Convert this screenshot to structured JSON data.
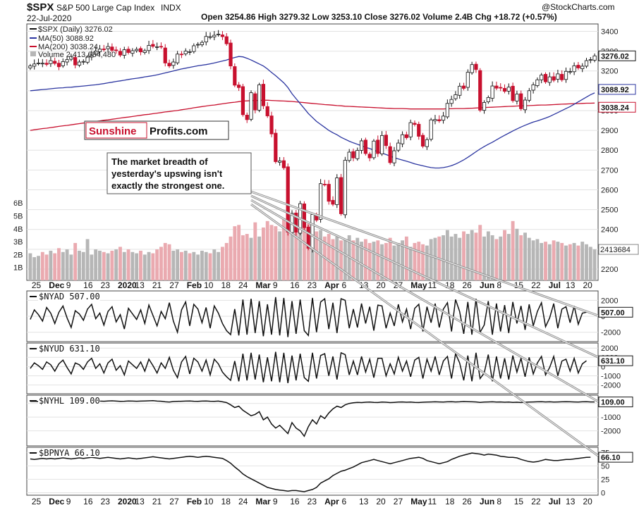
{
  "header": {
    "symbol": "$SPX",
    "name": "S&P 500 Large Cap Index",
    "exchange": "INDX",
    "date": "22-Jul-2020",
    "ohlc": "Open 3254.86  High 3279.32  Low 3253.10  Close 3276.02  Volume 2.4B  Chg +18.72 (+0.57%)",
    "watermark": "@StockCharts.com"
  },
  "legend": {
    "spx": "$SPX (Daily) 3276.02",
    "ma50": "MA(50) 3088.92",
    "ma200": "MA(200) 3038.24",
    "volume": "Volume 2,413,684,480"
  },
  "logo": {
    "part1": "Sunshine",
    "part2": "Profits.com"
  },
  "annotation": {
    "lines": [
      "The market breadth of",
      "yesterday's upswing isn't",
      "exactly the strongest one."
    ]
  },
  "colors": {
    "up": "#111111",
    "down": "#c8102e",
    "ma50": "#2b35a0",
    "ma200": "#c8102e",
    "vol_up": "#b6b6b6",
    "vol_down": "#eaaab0",
    "arrow": "#999999"
  },
  "chart_data": [
    {
      "type": "candlestick",
      "title": "$SPX S&P 500 Large Cap Index",
      "ylim": [
        2150,
        3430
      ],
      "y_ticks": [
        2200,
        2300,
        2400,
        2500,
        2600,
        2700,
        2800,
        2900,
        3000,
        3100,
        3200,
        3300,
        3400
      ],
      "volume_ticks": [
        "1B",
        "2B",
        "3B",
        "4B",
        "5B",
        "6B"
      ],
      "tags": {
        "close": "3276.02",
        "ma50": "3088.92",
        "ma200": "3038.24",
        "volume": "2413684"
      },
      "closes": [
        3225,
        3235,
        3240,
        3239,
        3233,
        3252,
        3238,
        3221,
        3247,
        3257,
        3273,
        3230,
        3245,
        3248,
        3270,
        3280,
        3300,
        3310,
        3307,
        3323,
        3304,
        3304,
        3280,
        3307,
        3293,
        3302,
        3309,
        3296,
        3302,
        3329,
        3324,
        3322,
        3321,
        3240,
        3225,
        3245,
        3285,
        3282,
        3300,
        3297,
        3327,
        3334,
        3344,
        3374,
        3373,
        3380,
        3386,
        3373,
        3337,
        3225,
        3128,
        3116,
        2979,
        2954,
        3090,
        3003,
        3130,
        3024,
        2973,
        2882,
        2742,
        2746,
        2711,
        2386,
        2481,
        2386,
        2530,
        2409,
        2305,
        2475,
        2447,
        2631,
        2627,
        2542,
        2527,
        2660,
        2479,
        2749,
        2790,
        2761,
        2799,
        2847,
        2783,
        2761,
        2846,
        2783,
        2874,
        2823,
        2737,
        2797,
        2836,
        2878,
        2863,
        2939,
        2930,
        2870,
        2820,
        2853,
        2953,
        2955,
        2948,
        2972,
        3036,
        3056,
        3080,
        3123,
        3112,
        3193,
        3232,
        3207,
        3002,
        3041,
        3066,
        3124,
        3113,
        3115,
        3097,
        3118,
        3050,
        3083,
        3009,
        3053,
        3100,
        3130,
        3155,
        3179,
        3145,
        3170,
        3153,
        3185,
        3155,
        3198,
        3197,
        3226,
        3215,
        3224,
        3252,
        3257,
        3276
      ],
      "ma50": [
        3100,
        3102,
        3104,
        3106,
        3108,
        3110,
        3112,
        3114,
        3115,
        3117,
        3118,
        3120,
        3122,
        3124,
        3126,
        3128,
        3130,
        3133,
        3136,
        3140,
        3143,
        3147,
        3150,
        3153,
        3157,
        3160,
        3163,
        3166,
        3170,
        3173,
        3176,
        3180,
        3185,
        3190,
        3195,
        3200,
        3205,
        3210,
        3214,
        3218,
        3222,
        3226,
        3229,
        3232,
        3236,
        3240,
        3245,
        3250,
        3255,
        3262,
        3268,
        3273,
        3271,
        3264,
        3255,
        3245,
        3235,
        3225,
        3210,
        3192,
        3176,
        3158,
        3140,
        3116,
        3085,
        3060,
        3035,
        3010,
        2985,
        2965,
        2945,
        2930,
        2915,
        2900,
        2888,
        2878,
        2865,
        2855,
        2845,
        2837,
        2830,
        2822,
        2814,
        2808,
        2800,
        2793,
        2785,
        2778,
        2770,
        2762,
        2756,
        2750,
        2744,
        2738,
        2731,
        2726,
        2721,
        2716,
        2712,
        2710,
        2710,
        2712,
        2716,
        2722,
        2730,
        2740,
        2751,
        2764,
        2778,
        2792,
        2806,
        2818,
        2830,
        2840,
        2852,
        2864,
        2875,
        2886,
        2897,
        2907,
        2917,
        2926,
        2934,
        2942,
        2948,
        2955,
        2962,
        2970,
        2980,
        2990,
        3000,
        3010,
        3020,
        3032,
        3044,
        3056,
        3068,
        3080,
        3089
      ],
      "ma200": [
        2900,
        2903,
        2906,
        2909,
        2911,
        2914,
        2917,
        2920,
        2923,
        2925,
        2928,
        2931,
        2934,
        2937,
        2939,
        2942,
        2945,
        2948,
        2951,
        2953,
        2956,
        2959,
        2962,
        2965,
        2967,
        2970,
        2973,
        2976,
        2979,
        2981,
        2984,
        2987,
        2990,
        2993,
        2995,
        2998,
        3000,
        3004,
        3007,
        3010,
        3014,
        3017,
        3020,
        3023,
        3026,
        3028,
        3031,
        3034,
        3037,
        3040,
        3042,
        3045,
        3048,
        3049,
        3050,
        3051,
        3051,
        3052,
        3052,
        3051,
        3050,
        3049,
        3048,
        3047,
        3046,
        3044,
        3042,
        3040,
        3038,
        3036,
        3034,
        3032,
        3030,
        3029,
        3027,
        3025,
        3024,
        3022,
        3021,
        3020,
        3019,
        3018,
        3017,
        3016,
        3015,
        3014,
        3013,
        3012,
        3011,
        3010,
        3010,
        3010,
        3009,
        3008,
        3008,
        3008,
        3008,
        3008,
        3008,
        3008,
        3008,
        3008,
        3009,
        3009,
        3010,
        3010,
        3010,
        3011,
        3012,
        3013,
        3014,
        3015,
        3016,
        3017,
        3018,
        3019,
        3020,
        3021,
        3022,
        3023,
        3024,
        3024,
        3025,
        3026,
        3027,
        3028,
        3028,
        3029,
        3030,
        3031,
        3032,
        3033,
        3034,
        3035,
        3035,
        3036,
        3037,
        3037,
        3038
      ],
      "volume_b": [
        2.1,
        1.8,
        1.9,
        2.2,
        2.0,
        2.3,
        2.1,
        2.5,
        2.2,
        2.4,
        2.0,
        2.9,
        2.3,
        2.2,
        3.2,
        2.0,
        2.4,
        2.3,
        2.2,
        2.1,
        2.3,
        2.4,
        2.6,
        2.2,
        2.4,
        2.2,
        2.1,
        2.3,
        2.0,
        2.2,
        2.1,
        2.4,
        2.6,
        2.9,
        2.8,
        2.3,
        2.4,
        2.2,
        2.3,
        2.1,
        2.2,
        2.0,
        2.3,
        2.2,
        2.1,
        2.4,
        2.2,
        2.6,
        2.9,
        3.4,
        4.2,
        4.3,
        3.5,
        3.6,
        3.3,
        4.5,
        3.4,
        4.1,
        4.6,
        4.3,
        4.2,
        3.8,
        4.8,
        5.4,
        4.0,
        4.6,
        5.1,
        5.7,
        4.4,
        3.9,
        3.8,
        3.9,
        3.4,
        3.6,
        3.2,
        3.4,
        3.1,
        3.2,
        3.5,
        3.1,
        3.3,
        3.0,
        3.2,
        2.9,
        3.0,
        3.1,
        2.8,
        2.9,
        3.3,
        2.7,
        2.9,
        3.1,
        3.4,
        2.6,
        2.9,
        3.0,
        2.8,
        2.7,
        3.2,
        3.3,
        3.4,
        3.5,
        3.9,
        3.4,
        3.6,
        3.3,
        3.8,
        3.6,
        3.9,
        3.7,
        4.3,
        3.4,
        3.8,
        3.5,
        3.2,
        3.4,
        3.9,
        3.6,
        4.6,
        4.0,
        3.5,
        3.7,
        3.3,
        3.1,
        3.2,
        2.9,
        3.0,
        2.8,
        3.1,
        3.0,
        2.9,
        2.7,
        2.8,
        2.9,
        2.7,
        3.0,
        2.8,
        2.6,
        2.4
      ]
    },
    {
      "type": "line",
      "title": "$NYAD 507.00",
      "tag": "507.00",
      "ylim": [
        -3000,
        3000
      ],
      "y_ticks": [
        2000,
        0,
        -2000
      ],
      "y_tick_labels": [
        "2000",
        "0",
        "-2000"
      ],
      "values": [
        -400,
        800,
        200,
        -600,
        1100,
        400,
        -900,
        500,
        1300,
        -200,
        -1400,
        700,
        300,
        -500,
        900,
        1500,
        -300,
        400,
        -1100,
        600,
        1200,
        -700,
        200,
        -1600,
        1000,
        300,
        -400,
        800,
        -900,
        1400,
        100,
        -1200,
        600,
        -300,
        1700,
        -600,
        -2000,
        800,
        1800,
        -1200,
        1500,
        900,
        -800,
        1100,
        -1500,
        1300,
        400,
        -900,
        -1800,
        -2300,
        900,
        -2400,
        2100,
        -2300,
        2200,
        -2100,
        1900,
        -2500,
        1500,
        -2300,
        2400,
        -2400,
        2300,
        -2600,
        1900,
        -2200,
        2100,
        -1800,
        -2400,
        2300,
        -2000,
        1800,
        2200,
        -1600,
        1700,
        -2100,
        2200,
        2000,
        -1500,
        900,
        -1400,
        1600,
        -900,
        1200,
        -1800,
        1400,
        1300,
        -1500,
        400,
        -1200,
        1500,
        -700,
        900,
        -1600,
        1000,
        1500,
        -1900,
        1200,
        -800,
        1600,
        -1400,
        900,
        1700,
        -1900,
        2100,
        600,
        -2200,
        1800,
        -2300,
        2200,
        -2000,
        -1100,
        1900,
        -2300,
        1600,
        -1900,
        1400,
        -2100,
        1800,
        -900,
        1300,
        -1700,
        1500,
        -1200,
        600,
        1700,
        -1300,
        -200,
        1600,
        -1500,
        900,
        1200,
        -800,
        1300,
        -1000,
        400,
        507
      ]
    },
    {
      "type": "line",
      "title": "$NYUD 631.10",
      "tag": "631.10",
      "ylim": [
        -2800,
        2400
      ],
      "y_ticks": [
        2000,
        1000,
        0,
        -1000,
        -2000
      ],
      "y_tick_labels": [
        "2000",
        "1000",
        "0",
        "-1000",
        "-2000"
      ],
      "values": [
        -200,
        400,
        100,
        -300,
        500,
        200,
        -500,
        300,
        700,
        -100,
        -800,
        400,
        200,
        -300,
        500,
        900,
        -200,
        300,
        -700,
        400,
        800,
        -400,
        100,
        -900,
        600,
        200,
        -200,
        500,
        -500,
        800,
        100,
        -700,
        400,
        -200,
        1000,
        -400,
        -1200,
        500,
        1100,
        -800,
        900,
        500,
        -500,
        700,
        -900,
        800,
        300,
        -600,
        -1100,
        -1500,
        600,
        -1600,
        1400,
        -1500,
        1500,
        -1400,
        1300,
        -1700,
        1000,
        -1600,
        1600,
        -1700,
        1500,
        -1800,
        1200,
        -1500,
        1400,
        -1200,
        -1600,
        1500,
        -1300,
        1200,
        1400,
        -1000,
        1100,
        -1400,
        1500,
        1300,
        -900,
        600,
        -900,
        1100,
        -600,
        800,
        -1200,
        900,
        900,
        -1000,
        300,
        -800,
        1000,
        -500,
        600,
        -1100,
        700,
        1000,
        -1300,
        800,
        -500,
        1100,
        -900,
        600,
        1100,
        -1300,
        1400,
        400,
        -1500,
        1200,
        -1600,
        1500,
        -1300,
        -700,
        1300,
        -1600,
        1100,
        -1300,
        900,
        -1400,
        1200,
        -600,
        900,
        -1100,
        1000,
        -800,
        400,
        1100,
        -900,
        -100,
        1100,
        -1000,
        600,
        800,
        -500,
        900,
        -700,
        300,
        631
      ]
    },
    {
      "type": "line",
      "title": "$NYHL 109.00",
      "tag": "109.00",
      "ylim": [
        -3000,
        500
      ],
      "y_ticks": [
        0,
        -1000,
        -2000
      ],
      "y_tick_labels": [
        "0",
        "-1000",
        "-2000"
      ],
      "values": [
        150,
        160,
        140,
        180,
        170,
        190,
        160,
        150,
        170,
        180,
        160,
        140,
        150,
        170,
        180,
        200,
        190,
        170,
        160,
        180,
        190,
        170,
        150,
        160,
        180,
        170,
        160,
        170,
        180,
        190,
        200,
        170,
        160,
        120,
        100,
        140,
        150,
        160,
        170,
        180,
        160,
        150,
        170,
        180,
        160,
        150,
        170,
        120,
        60,
        -100,
        -300,
        -200,
        -500,
        -700,
        -900,
        -800,
        -600,
        -1200,
        -1000,
        -1500,
        -1800,
        -1600,
        -1900,
        -2200,
        -1400,
        -1800,
        -2000,
        -2400,
        -1700,
        -1200,
        -1500,
        -900,
        -1100,
        -700,
        -400,
        -200,
        -300,
        -100,
        0,
        50,
        80,
        60,
        90,
        100,
        80,
        70,
        100,
        90,
        60,
        80,
        100,
        110,
        90,
        100,
        80,
        70,
        90,
        100,
        110,
        120,
        110,
        100,
        120,
        130,
        110,
        120,
        140,
        130,
        120,
        110,
        80,
        100,
        110,
        120,
        100,
        110,
        90,
        100,
        80,
        90,
        70,
        90,
        100,
        110,
        120,
        130,
        110,
        120,
        100,
        110,
        120,
        130,
        120,
        110,
        100,
        120,
        130,
        110,
        109
      ]
    },
    {
      "type": "line",
      "title": "$BPNYA 66.10",
      "tag": "66.10",
      "ylim": [
        -2,
        82
      ],
      "y_ticks": [
        75,
        50,
        25,
        0
      ],
      "y_tick_labels": [
        "75",
        "50",
        "25",
        "0"
      ],
      "values": [
        63,
        62,
        63,
        64,
        63,
        64,
        63,
        64,
        65,
        64,
        63,
        64,
        65,
        64,
        65,
        66,
        65,
        64,
        65,
        66,
        65,
        64,
        63,
        64,
        65,
        64,
        63,
        64,
        65,
        66,
        67,
        66,
        65,
        64,
        63,
        64,
        65,
        66,
        67,
        68,
        67,
        66,
        67,
        68,
        67,
        66,
        65,
        64,
        60,
        55,
        48,
        42,
        35,
        30,
        26,
        22,
        18,
        14,
        10,
        8,
        6,
        5,
        4,
        3,
        4,
        4,
        3,
        2,
        4,
        6,
        10,
        18,
        22,
        26,
        32,
        36,
        40,
        42,
        45,
        48,
        52,
        56,
        58,
        60,
        62,
        60,
        58,
        56,
        54,
        56,
        58,
        60,
        62,
        64,
        65,
        66,
        64,
        60,
        58,
        56,
        54,
        56,
        58,
        62,
        65,
        68,
        70,
        72,
        74,
        73,
        72,
        70,
        72,
        71,
        70,
        68,
        67,
        66,
        66,
        65,
        62,
        60,
        58,
        57,
        58,
        60,
        62,
        61,
        60,
        60,
        61,
        62,
        62,
        63,
        64,
        65,
        66,
        66.1
      ]
    }
  ],
  "x_axis": {
    "date_labels": [
      "25",
      "Dec",
      "9",
      "16",
      "23",
      "2020",
      "13",
      "21",
      "27",
      "Feb",
      "10",
      "18",
      "24",
      "Mar",
      "9",
      "16",
      "23",
      "Apr",
      "6",
      "13",
      "20",
      "27",
      "May",
      "11",
      "18",
      "26",
      "Jun",
      "8",
      "15",
      "22",
      "Jul",
      "13",
      "20"
    ]
  }
}
